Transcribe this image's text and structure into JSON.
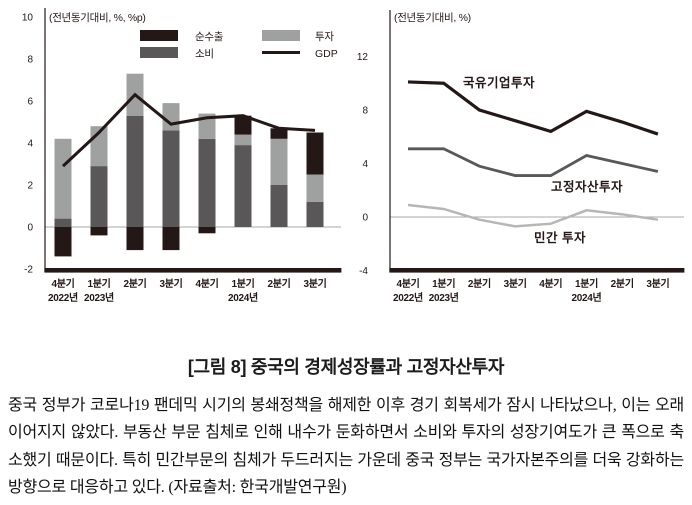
{
  "caption": "[그림 8] 중국의 경제성장률과 고정자산투자",
  "body": "중국 정부가 코로나19 팬데믹 시기의 봉쇄정책을 해제한 이후 경기 회복세가 잠시 나타났으나, 이는 오래 이어지지 않았다. 부동산 부문 침체로 인해 내수가 둔화하면서 소비와 투자의 성장기여도가 큰 폭으로 축소했기 때문이다. 특히 민간부문의 침체가 두드러지는 가운데 중국 정부는 국가자본주의를 더욱 강화하는 방향으로 대응하고 있다. (자료출처: 한국개발연구원)",
  "colors": {
    "black": "#231815",
    "dark_gray": "#595757",
    "light_gray": "#9fa0a0",
    "pale_gray": "#b5b6b6",
    "zero_line": "#a8a8a8"
  },
  "chart_data": [
    {
      "type": "bar",
      "stacked": true,
      "unit_label": "(전년동기대비, %, %p)",
      "categories": [
        "4분기",
        "1분기",
        "2분기",
        "3분기",
        "4분기",
        "1분기",
        "2분기",
        "3분기"
      ],
      "year_row": [
        "2022년",
        "2023년",
        "",
        "",
        "",
        "2024년",
        "",
        ""
      ],
      "series": [
        {
          "name": "순수출",
          "color": "#231815",
          "values": [
            -1.4,
            -0.4,
            -1.1,
            -1.1,
            -0.3,
            0.9,
            0.5,
            2.0
          ]
        },
        {
          "name": "소비",
          "color": "#595757",
          "values": [
            0.4,
            2.9,
            5.3,
            4.6,
            4.2,
            3.9,
            2.0,
            1.2
          ]
        },
        {
          "name": "투자",
          "color": "#9fa0a0",
          "values": [
            3.8,
            1.9,
            2.0,
            1.3,
            1.2,
            0.5,
            2.2,
            1.3
          ]
        }
      ],
      "line_series": {
        "name": "GDP",
        "color": "#231815",
        "values": [
          2.9,
          4.5,
          6.3,
          4.9,
          5.2,
          5.3,
          4.7,
          4.6
        ]
      },
      "ylim": [
        -2,
        10
      ],
      "yticks": [
        10,
        8,
        6,
        4,
        2,
        0,
        -2
      ],
      "legend_position": "top",
      "grid": "zero-line-only"
    },
    {
      "type": "line",
      "unit_label": "(전년동기대비, %)",
      "categories": [
        "4분기",
        "1분기",
        "2분기",
        "3분기",
        "4분기",
        "1분기",
        "2분기",
        "3분기"
      ],
      "year_row": [
        "2022년",
        "2023년",
        "",
        "",
        "",
        "2024년",
        "",
        ""
      ],
      "series": [
        {
          "name": "국유기업투자",
          "color": "#231815",
          "values": [
            10.1,
            10.0,
            8.0,
            7.2,
            6.4,
            7.9,
            7.1,
            6.2
          ]
        },
        {
          "name": "고정자산투자",
          "color": "#595757",
          "values": [
            5.1,
            5.1,
            3.8,
            3.1,
            3.1,
            4.6,
            4.0,
            3.4
          ]
        },
        {
          "name": "민간 투자",
          "color": "#b5b6b6",
          "values": [
            0.9,
            0.6,
            -0.2,
            -0.7,
            -0.5,
            0.5,
            0.2,
            -0.2
          ]
        }
      ],
      "ylim": [
        -4,
        13
      ],
      "yticks": [
        12,
        8,
        4,
        0,
        -4
      ],
      "legend_position": "inline-labels",
      "grid": "zero-line-only"
    }
  ]
}
